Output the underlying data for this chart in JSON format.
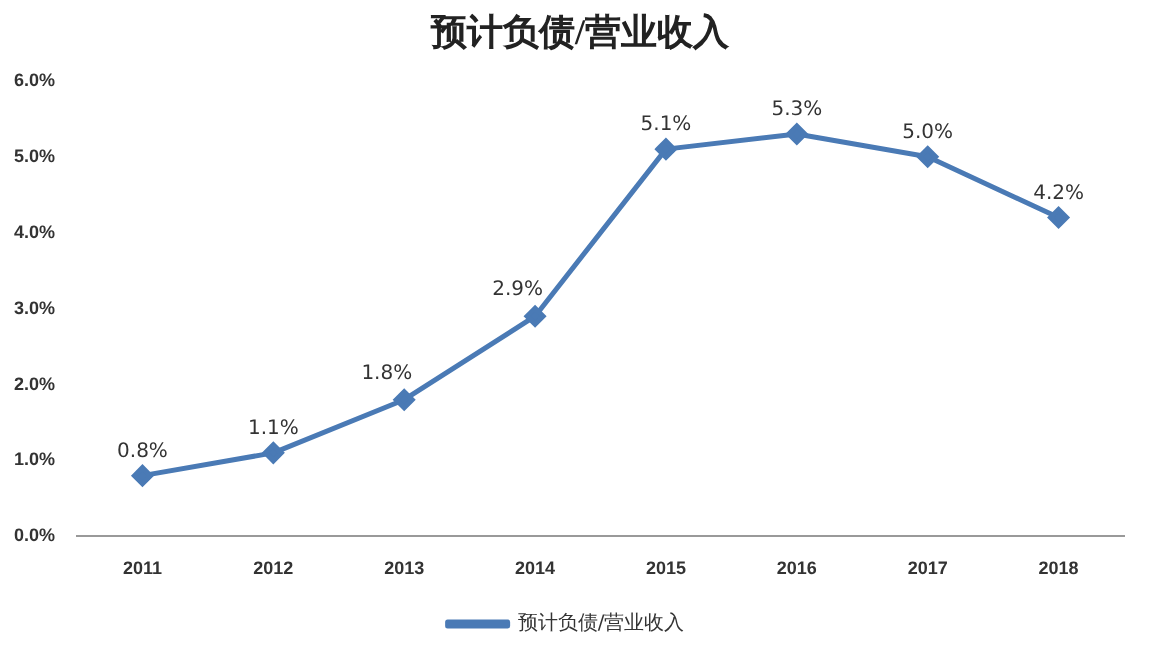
{
  "chart_data": {
    "type": "line",
    "title": "预计负债/营业收入",
    "categories": [
      "2011",
      "2012",
      "2013",
      "2014",
      "2015",
      "2016",
      "2017",
      "2018"
    ],
    "series": [
      {
        "name": "预计负债/营业收入",
        "color": "#4a7ab5",
        "values": [
          0.8,
          1.1,
          1.8,
          2.9,
          5.1,
          5.3,
          5.0,
          4.2
        ],
        "value_labels": [
          "0.8%",
          "1.1%",
          "1.8%",
          "2.9%",
          "5.1%",
          "5.3%",
          "5.0%",
          "4.2%"
        ]
      }
    ],
    "ylim": [
      0,
      6
    ],
    "yticks": [
      {
        "value": 0,
        "label": "0.0%"
      },
      {
        "value": 1,
        "label": "1.0%"
      },
      {
        "value": 2,
        "label": "2.0%"
      },
      {
        "value": 3,
        "label": "3.0%"
      },
      {
        "value": 4,
        "label": "4.0%"
      },
      {
        "value": 5,
        "label": "5.0%"
      },
      {
        "value": 6,
        "label": "6.0%"
      }
    ],
    "grid": false,
    "legend": "bottom",
    "marker": "diamond",
    "line_style": "solid"
  }
}
